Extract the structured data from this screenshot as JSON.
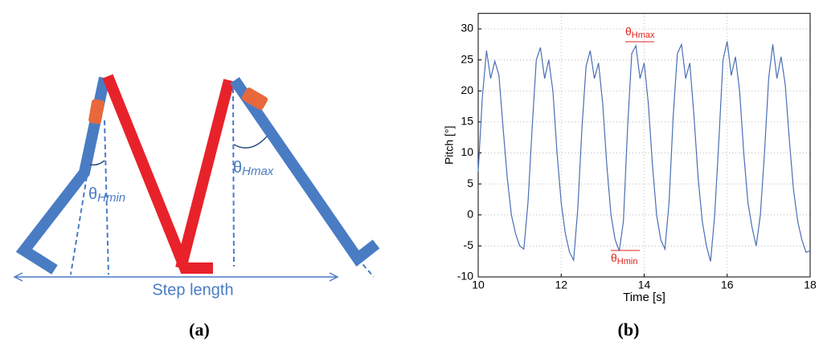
{
  "diagram": {
    "angle_min": {
      "symbol": "θ",
      "subscript": "Hmin"
    },
    "angle_max": {
      "symbol": "θ",
      "subscript": "Hmax"
    },
    "step_label": "Step length",
    "panel_label": "(a)"
  },
  "chart_data": {
    "type": "line",
    "panel_label": "(b)",
    "xlabel": "Time [s]",
    "ylabel": "Pitch [°]",
    "xlim": [
      10,
      18
    ],
    "ylim": [
      -10,
      32.5
    ],
    "xticks": [
      10,
      12,
      14,
      16,
      18
    ],
    "yticks": [
      -10,
      -5,
      0,
      5,
      10,
      15,
      20,
      25,
      30
    ],
    "grid": true,
    "annotations": [
      {
        "symbol": "θ",
        "subscript": "Hmax",
        "color": "#e0201b"
      },
      {
        "symbol": "θ",
        "subscript": "Hmin",
        "color": "#e0201b"
      }
    ],
    "x": [
      10,
      10.1,
      10.2,
      10.3,
      10.4,
      10.5,
      10.6,
      10.7,
      10.8,
      10.9,
      11,
      11.1,
      11.2,
      11.3,
      11.4,
      11.5,
      11.6,
      11.7,
      11.8,
      11.9,
      12,
      12.1,
      12.2,
      12.3,
      12.4,
      12.5,
      12.6,
      12.7,
      12.8,
      12.9,
      13,
      13.1,
      13.2,
      13.3,
      13.4,
      13.5,
      13.6,
      13.7,
      13.8,
      13.9,
      14,
      14.1,
      14.2,
      14.3,
      14.4,
      14.5,
      14.6,
      14.7,
      14.8,
      14.9,
      15,
      15.1,
      15.2,
      15.3,
      15.4,
      15.5,
      15.6,
      15.7,
      15.8,
      15.9,
      16,
      16.1,
      16.2,
      16.3,
      16.4,
      16.5,
      16.6,
      16.7,
      16.8,
      16.9,
      17,
      17.1,
      17.2,
      17.3,
      17.4,
      17.5,
      17.6,
      17.7,
      17.8,
      17.9,
      18
    ],
    "series": [
      {
        "color": "#4a6fb5",
        "values": [
          7,
          19,
          26.5,
          22,
          24.8,
          22.5,
          14,
          6,
          0,
          -3,
          -5,
          -5.5,
          2,
          14,
          25,
          27,
          22,
          25,
          20,
          10,
          2,
          -3,
          -6,
          -7.3,
          1,
          14,
          24,
          26.5,
          22,
          24.5,
          18,
          8,
          0,
          -4,
          -5.8,
          -1,
          14,
          26,
          27.3,
          22,
          24.5,
          18,
          8,
          0,
          -4,
          -5.5,
          2,
          16,
          26,
          27.5,
          22,
          24.5,
          16,
          6,
          -1,
          -5,
          -7.5,
          0,
          12,
          25,
          28,
          22.5,
          25.5,
          20,
          10,
          2,
          -2,
          -5,
          0,
          10,
          22,
          27.5,
          22,
          25.5,
          21,
          12,
          4,
          -1,
          -4,
          -6,
          -5.8
        ]
      }
    ]
  }
}
